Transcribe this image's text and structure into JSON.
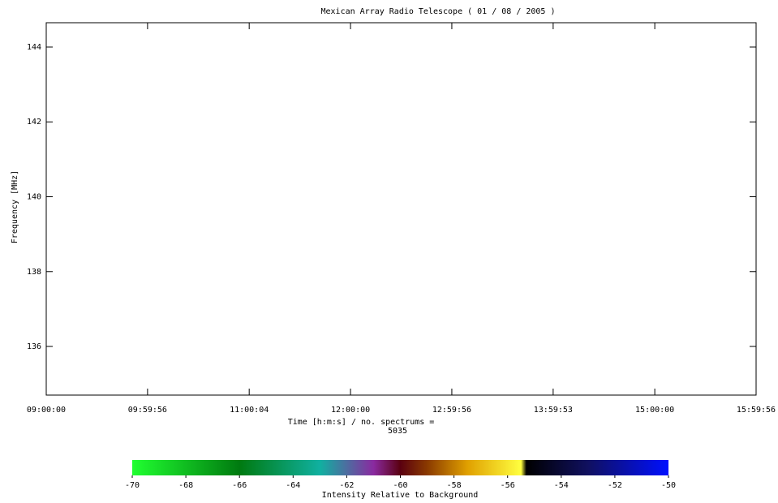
{
  "chart_data": {
    "type": "spectrogram",
    "title": "Mexican Array Radio Telescope  ( 01 / 08 / 2005 )",
    "xlabel": "Time [h:m:s] / no. spectrums =",
    "xlabel2": "5035",
    "ylabel": "Frequency [MHz]",
    "xlim": [
      32400,
      57596
    ],
    "xticks": [
      {
        "value": 32400,
        "label": "09:00:00"
      },
      {
        "value": 35996,
        "label": "09:59:56"
      },
      {
        "value": 39604,
        "label": "11:00:04"
      },
      {
        "value": 43200,
        "label": "12:00:00"
      },
      {
        "value": 46796,
        "label": "12:59:56"
      },
      {
        "value": 50393,
        "label": "13:59:53"
      },
      {
        "value": 54000,
        "label": "15:00:00"
      },
      {
        "value": 57596,
        "label": "15:59:56"
      }
    ],
    "ylim": [
      134.7,
      144.65
    ],
    "yticks": [
      136,
      138,
      140,
      142,
      144
    ],
    "colorbar": {
      "label": "Intensity Relative to Background",
      "lim": [
        -70,
        -50
      ],
      "ticks": [
        -70,
        -68,
        -66,
        -64,
        -62,
        -60,
        -58,
        -56,
        -54,
        -52,
        -50
      ],
      "stops": [
        {
          "value": -70,
          "color": "#20ff30"
        },
        {
          "value": -66,
          "color": "#007a10"
        },
        {
          "value": -63,
          "color": "#10b0a0"
        },
        {
          "value": -61,
          "color": "#8a2aa0"
        },
        {
          "value": -60,
          "color": "#5a0010"
        },
        {
          "value": -59,
          "color": "#8a3a00"
        },
        {
          "value": -57.5,
          "color": "#e0a000"
        },
        {
          "value": -55.5,
          "color": "#ffff40"
        },
        {
          "value": -55.3,
          "color": "#000000"
        },
        {
          "value": -53,
          "color": "#101060"
        },
        {
          "value": -50,
          "color": "#0010ff"
        }
      ]
    }
  }
}
